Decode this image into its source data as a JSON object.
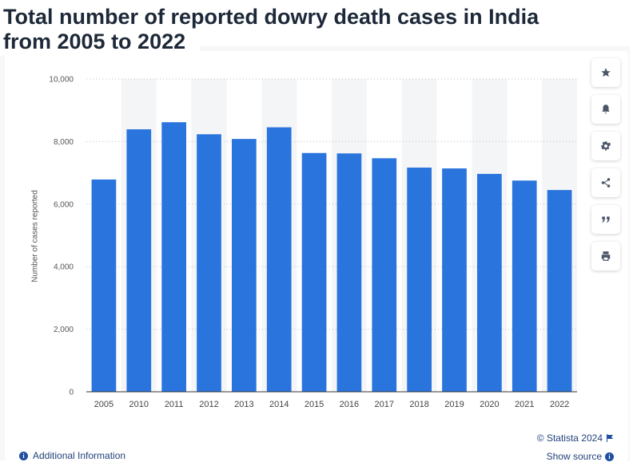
{
  "title": "Total number of reported dowry death cases in India from 2005 to 2022",
  "title_line1": "Total number of reported dowry death cases in India",
  "title_line2": "from 2005 to 2022",
  "toolbar": {
    "buttons": [
      {
        "name": "star-button",
        "icon": "star-icon"
      },
      {
        "name": "notification-button",
        "icon": "bell-icon"
      },
      {
        "name": "settings-button",
        "icon": "gear-icon"
      },
      {
        "name": "share-button",
        "icon": "share-icon"
      },
      {
        "name": "cite-button",
        "icon": "quote-icon"
      },
      {
        "name": "print-button",
        "icon": "print-icon"
      }
    ]
  },
  "footer": {
    "copyright": "© Statista 2024",
    "additional_info": "Additional Information",
    "show_source": "Show source"
  },
  "colors": {
    "bar": "#2a74de",
    "title": "#1d2838",
    "link": "#23427a"
  },
  "chart_data": {
    "type": "bar",
    "categories": [
      "2005",
      "2010",
      "2011",
      "2012",
      "2013",
      "2014",
      "2015",
      "2016",
      "2017",
      "2018",
      "2019",
      "2020",
      "2021",
      "2022"
    ],
    "values": [
      6787,
      8391,
      8618,
      8233,
      8083,
      8455,
      7634,
      7621,
      7466,
      7167,
      7141,
      6966,
      6753,
      6450
    ],
    "title": "",
    "xlabel": "",
    "ylabel": "Number of cases reported",
    "ylim": [
      0,
      10000
    ],
    "yticks": [
      0,
      2000,
      4000,
      6000,
      8000,
      10000
    ],
    "ytick_labels": [
      "0",
      "2,000",
      "4,000",
      "6,000",
      "8,000",
      "10,000"
    ],
    "grid": true,
    "legend": "none"
  }
}
